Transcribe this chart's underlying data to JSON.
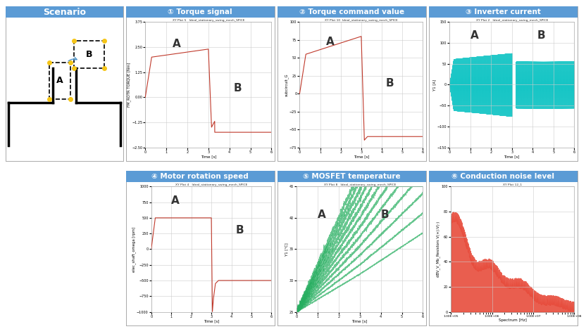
{
  "title_bg_color": "#5b9bd5",
  "title_text_color": "#ffffff",
  "outer_bg_color": "#ffffff",
  "plot_bg_color": "#ffffff",
  "grid_color": "#cccccc",
  "header_labels_top": [
    "① Torque signal",
    "② Torque command value",
    "③ Inverter current"
  ],
  "header_labels_bot": [
    "④ Motor rotation speed",
    "⑤ MOSFET temperature",
    "⑥ Conduction noise level"
  ],
  "scenario_label": "Scenario",
  "subplot_titles": [
    "XY Plot 5   Ideal_stationary_swing_mech_SPICE",
    "XY Plot 10  Ideal_stationary_swing_mech_SPICE",
    "XY Plot 2   Ideal_stationary_swing_mech_SPICE",
    "XY Plot 4   Ideal_stationary_swing_mech_SPICE",
    "XY Plot 8   Ideal_stationary_swing_mech_SPICE",
    "XY Plot 12_1"
  ],
  "torque_color": "#c0392b",
  "inverter_color": "#00c0c0",
  "motor_speed_color": "#c0392b",
  "mosfet_color": "#27ae60",
  "noise_color": "#e74c3c",
  "border_color": "#aaaaaa"
}
